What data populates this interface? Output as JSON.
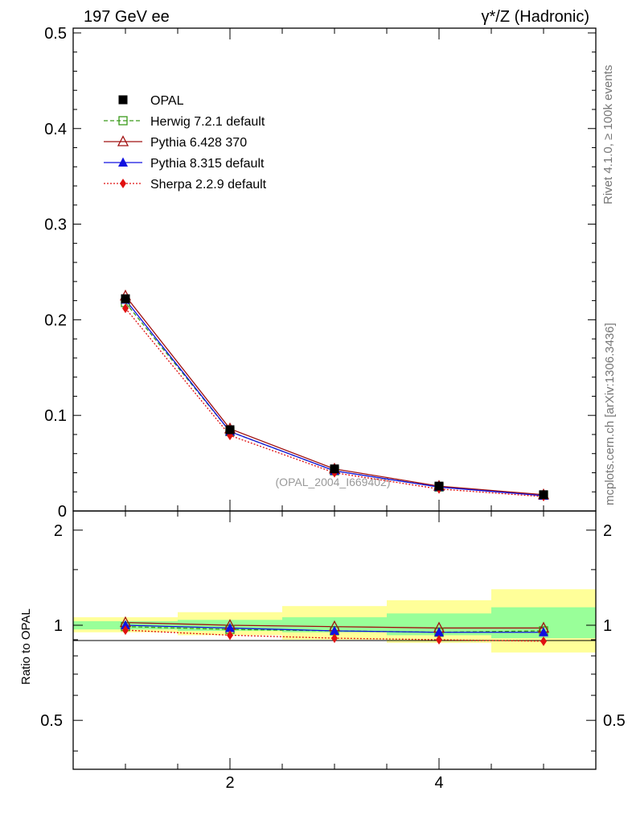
{
  "header": {
    "left": "197 GeV ee",
    "right": "γ*/Z (Hadronic)"
  },
  "side_labels": {
    "rivet": "Rivet 4.1.0, ≥ 100k events",
    "mcplots": "mcplots.cern.ch [arXiv:1306.3436]"
  },
  "watermark": "(OPAL_2004_I669402)",
  "colors": {
    "opal": "#000000",
    "herwig": "#3a9a1a",
    "pythia6": "#a01010",
    "pythia8": "#1010e0",
    "sherpa": "#e01010",
    "band_inner": "#99ff99",
    "band_outer": "#ffff99"
  },
  "chart_data": [
    {
      "type": "line",
      "title": "",
      "xlabel": "",
      "ylabel": "",
      "xlim": [
        0.5,
        5.5
      ],
      "ylim": [
        0,
        0.505
      ],
      "x": [
        1,
        2,
        3,
        4,
        5
      ],
      "ytick_labels": [
        "0",
        "0.1",
        "0.2",
        "0.3",
        "0.4",
        "0.5"
      ],
      "legend_position": "top-left",
      "series": [
        {
          "name": "OPAL",
          "marker": "square-filled",
          "values": [
            0.222,
            0.085,
            0.044,
            0.026,
            0.017
          ]
        },
        {
          "name": "Herwig 7.2.1 default",
          "marker": "square-open",
          "values": [
            0.218,
            0.083,
            0.042,
            0.025,
            0.0165
          ]
        },
        {
          "name": "Pythia 6.428 370",
          "marker": "triangle-open",
          "values": [
            0.225,
            0.086,
            0.044,
            0.026,
            0.017
          ]
        },
        {
          "name": "Pythia 8.315 default",
          "marker": "triangle-filled",
          "values": [
            0.221,
            0.083,
            0.042,
            0.025,
            0.016
          ]
        },
        {
          "name": "Sherpa 2.2.9 default",
          "marker": "diamond-filled",
          "values": [
            0.212,
            0.079,
            0.04,
            0.023,
            0.015
          ]
        }
      ]
    },
    {
      "type": "line",
      "title": "",
      "xlabel": "",
      "ylabel": "Ratio to OPAL",
      "xlim": [
        0.5,
        5.5
      ],
      "ylim": [
        0.35,
        2.3
      ],
      "yscale": "log",
      "x": [
        1,
        2,
        3,
        4,
        5
      ],
      "xtick_labels": [
        "2",
        "4"
      ],
      "ytick_labels": [
        "0.5",
        "1",
        "2"
      ],
      "bands": [
        {
          "x_range": [
            0.5,
            1.5
          ],
          "inner": [
            0.97,
            1.03
          ],
          "outer": [
            0.95,
            1.06
          ]
        },
        {
          "x_range": [
            1.5,
            2.5
          ],
          "inner": [
            0.96,
            1.04
          ],
          "outer": [
            0.93,
            1.1
          ]
        },
        {
          "x_range": [
            2.5,
            3.5
          ],
          "inner": [
            0.95,
            1.06
          ],
          "outer": [
            0.9,
            1.15
          ]
        },
        {
          "x_range": [
            3.5,
            4.5
          ],
          "inner": [
            0.93,
            1.09
          ],
          "outer": [
            0.88,
            1.2
          ]
        },
        {
          "x_range": [
            4.5,
            5.5
          ],
          "inner": [
            0.91,
            1.14
          ],
          "outer": [
            0.82,
            1.3
          ]
        }
      ],
      "series": [
        {
          "name": "Herwig 7.2.1 default",
          "marker": "square-open",
          "values": [
            0.99,
            0.97,
            0.96,
            0.95,
            0.96
          ]
        },
        {
          "name": "Pythia 6.428 370",
          "marker": "triangle-open",
          "values": [
            1.02,
            1.0,
            0.99,
            0.98,
            0.98
          ]
        },
        {
          "name": "Pythia 8.315 default",
          "marker": "triangle-filled",
          "values": [
            1.0,
            0.98,
            0.96,
            0.95,
            0.95
          ]
        },
        {
          "name": "Sherpa 2.2.9 default",
          "marker": "diamond-filled",
          "values": [
            0.965,
            0.93,
            0.91,
            0.9,
            0.89
          ]
        }
      ]
    }
  ]
}
